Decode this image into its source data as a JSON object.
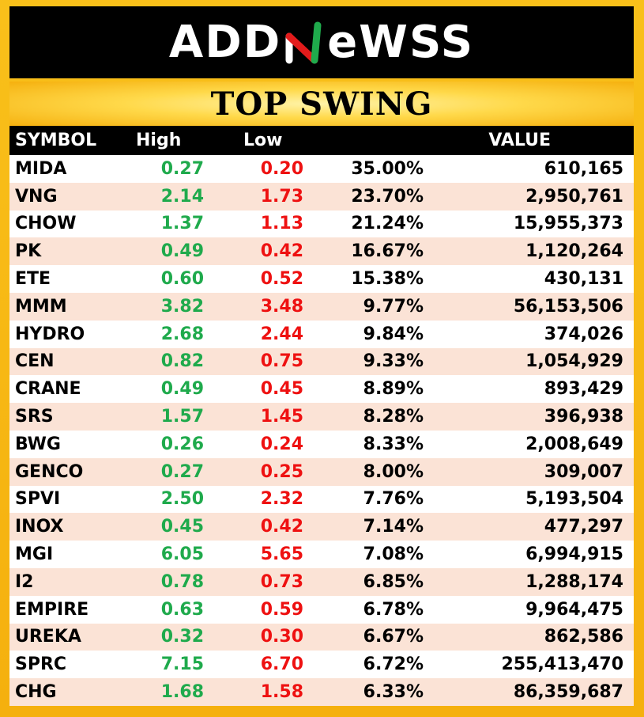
{
  "brand": {
    "logo_left": "ADD",
    "logo_right": "eWSS"
  },
  "title": "TOP SWING",
  "columns": {
    "symbol": "SYMBOL",
    "high": "High",
    "low": "Low",
    "pct": "",
    "value": "VALUE"
  },
  "colors": {
    "high": "#1faa4c",
    "low": "#ee1111",
    "row_alt": "#fbe3d6",
    "frame": "#f5b00e"
  },
  "rows": [
    {
      "symbol": "MIDA",
      "high": "0.27",
      "low": "0.20",
      "pct": "35.00%",
      "value": "610,165"
    },
    {
      "symbol": "VNG",
      "high": "2.14",
      "low": "1.73",
      "pct": "23.70%",
      "value": "2,950,761"
    },
    {
      "symbol": "CHOW",
      "high": "1.37",
      "low": "1.13",
      "pct": "21.24%",
      "value": "15,955,373"
    },
    {
      "symbol": "PK",
      "high": "0.49",
      "low": "0.42",
      "pct": "16.67%",
      "value": "1,120,264"
    },
    {
      "symbol": "ETE",
      "high": "0.60",
      "low": "0.52",
      "pct": "15.38%",
      "value": "430,131"
    },
    {
      "symbol": "MMM",
      "high": "3.82",
      "low": "3.48",
      "pct": "9.77%",
      "value": "56,153,506"
    },
    {
      "symbol": "HYDRO",
      "high": "2.68",
      "low": "2.44",
      "pct": "9.84%",
      "value": "374,026"
    },
    {
      "symbol": "CEN",
      "high": "0.82",
      "low": "0.75",
      "pct": "9.33%",
      "value": "1,054,929"
    },
    {
      "symbol": "CRANE",
      "high": "0.49",
      "low": "0.45",
      "pct": "8.89%",
      "value": "893,429"
    },
    {
      "symbol": "SRS",
      "high": "1.57",
      "low": "1.45",
      "pct": "8.28%",
      "value": "396,938"
    },
    {
      "symbol": "BWG",
      "high": "0.26",
      "low": "0.24",
      "pct": "8.33%",
      "value": "2,008,649"
    },
    {
      "symbol": "GENCO",
      "high": "0.27",
      "low": "0.25",
      "pct": "8.00%",
      "value": "309,007"
    },
    {
      "symbol": "SPVI",
      "high": "2.50",
      "low": "2.32",
      "pct": "7.76%",
      "value": "5,193,504"
    },
    {
      "symbol": "INOX",
      "high": "0.45",
      "low": "0.42",
      "pct": "7.14%",
      "value": "477,297"
    },
    {
      "symbol": "MGI",
      "high": "6.05",
      "low": "5.65",
      "pct": "7.08%",
      "value": "6,994,915"
    },
    {
      "symbol": "I2",
      "high": "0.78",
      "low": "0.73",
      "pct": "6.85%",
      "value": "1,288,174"
    },
    {
      "symbol": "EMPIRE",
      "high": "0.63",
      "low": "0.59",
      "pct": "6.78%",
      "value": "9,964,475"
    },
    {
      "symbol": "UREKA",
      "high": "0.32",
      "low": "0.30",
      "pct": "6.67%",
      "value": "862,586"
    },
    {
      "symbol": "SPRC",
      "high": "7.15",
      "low": "6.70",
      "pct": "6.72%",
      "value": "255,413,470"
    },
    {
      "symbol": "CHG",
      "high": "1.68",
      "low": "1.58",
      "pct": "6.33%",
      "value": "86,359,687"
    }
  ]
}
